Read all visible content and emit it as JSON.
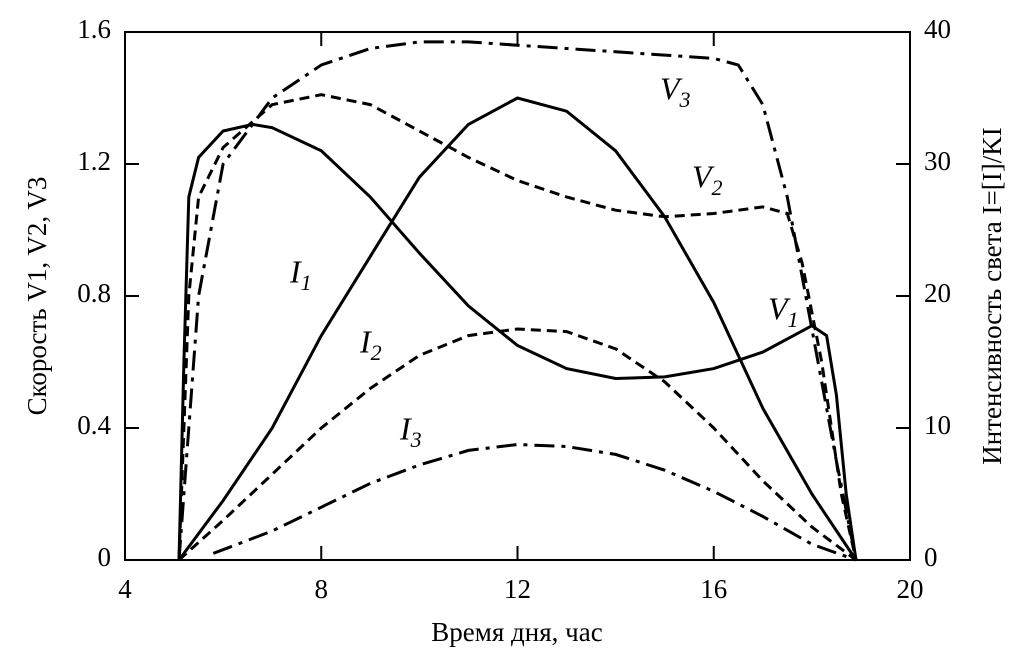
{
  "chart_data": {
    "type": "line",
    "xlabel": "Время дня, час",
    "ylabel": "Скорость V1, V2, V3",
    "y2label": "Интенсивность света I=[I]/KI",
    "xlim": [
      4,
      20
    ],
    "xticks": [
      4,
      8,
      12,
      16,
      20
    ],
    "ylim": [
      0,
      1.6
    ],
    "yticks": [
      0,
      0.4,
      0.8,
      1.2,
      1.6
    ],
    "y2lim": [
      0,
      40
    ],
    "y2ticks": [
      0,
      10,
      20,
      30,
      40
    ],
    "series": [
      {
        "name": "V1",
        "color": "#000000",
        "style": "solid",
        "x": [
          5.1,
          5.2,
          5.3,
          5.5,
          6,
          6.6,
          7,
          8,
          9,
          10,
          11,
          12,
          13,
          14,
          15,
          16,
          17,
          17.5,
          18,
          18.3,
          18.5,
          18.7,
          18.9
        ],
        "values": [
          0,
          0.6,
          1.1,
          1.22,
          1.3,
          1.32,
          1.31,
          1.24,
          1.1,
          0.93,
          0.77,
          0.65,
          0.58,
          0.55,
          0.555,
          0.58,
          0.63,
          0.67,
          0.71,
          0.68,
          0.5,
          0.2,
          0
        ]
      },
      {
        "name": "V2",
        "color": "#000000",
        "style": "dashed",
        "x": [
          5.1,
          5.3,
          5.5,
          6,
          7,
          8,
          9,
          10,
          11,
          12,
          13,
          14,
          15,
          16,
          17,
          17.5,
          17.8,
          18.2,
          18.6,
          18.9
        ],
        "values": [
          0,
          0.8,
          1.1,
          1.25,
          1.38,
          1.41,
          1.38,
          1.3,
          1.22,
          1.15,
          1.1,
          1.06,
          1.04,
          1.05,
          1.07,
          1.05,
          0.9,
          0.6,
          0.2,
          0
        ]
      },
      {
        "name": "V3",
        "color": "#000000",
        "style": "dashdot",
        "x": [
          5.1,
          5.5,
          6,
          7,
          8,
          9,
          10,
          11,
          12,
          13,
          14,
          15,
          16,
          16.5,
          17,
          17.5,
          18,
          18.5,
          18.9
        ],
        "values": [
          0,
          0.8,
          1.2,
          1.4,
          1.5,
          1.55,
          1.57,
          1.57,
          1.56,
          1.55,
          1.54,
          1.53,
          1.52,
          1.5,
          1.38,
          1.1,
          0.7,
          0.3,
          0
        ]
      },
      {
        "name": "I1",
        "color": "#000000",
        "style": "solid",
        "axis": "y2",
        "x": [
          5.1,
          6,
          7,
          8,
          9,
          10,
          11,
          12,
          13,
          14,
          15,
          16,
          17,
          18,
          18.9
        ],
        "values": [
          0,
          4.5,
          10,
          17,
          23,
          29,
          33,
          35,
          34,
          31,
          26,
          19.5,
          11.5,
          5,
          0
        ]
      },
      {
        "name": "I2",
        "color": "#000000",
        "style": "dashed",
        "axis": "y2",
        "x": [
          5.1,
          6,
          7,
          8,
          9,
          10,
          11,
          12,
          13,
          14,
          15,
          16,
          17,
          18,
          18.9
        ],
        "values": [
          0,
          3,
          6.5,
          10,
          13,
          15.5,
          17,
          17.5,
          17.3,
          16,
          13.5,
          10,
          6,
          2.5,
          0
        ]
      },
      {
        "name": "I3",
        "color": "#000000",
        "style": "dashdot",
        "axis": "y2",
        "x": [
          5.8,
          7,
          8,
          9,
          10,
          11,
          12,
          13,
          14,
          15,
          16,
          17,
          18,
          18.9
        ],
        "values": [
          0.5,
          2.2,
          4,
          5.8,
          7.2,
          8.3,
          8.75,
          8.6,
          8,
          6.8,
          5.2,
          3.3,
          1.2,
          0
        ]
      }
    ]
  }
}
